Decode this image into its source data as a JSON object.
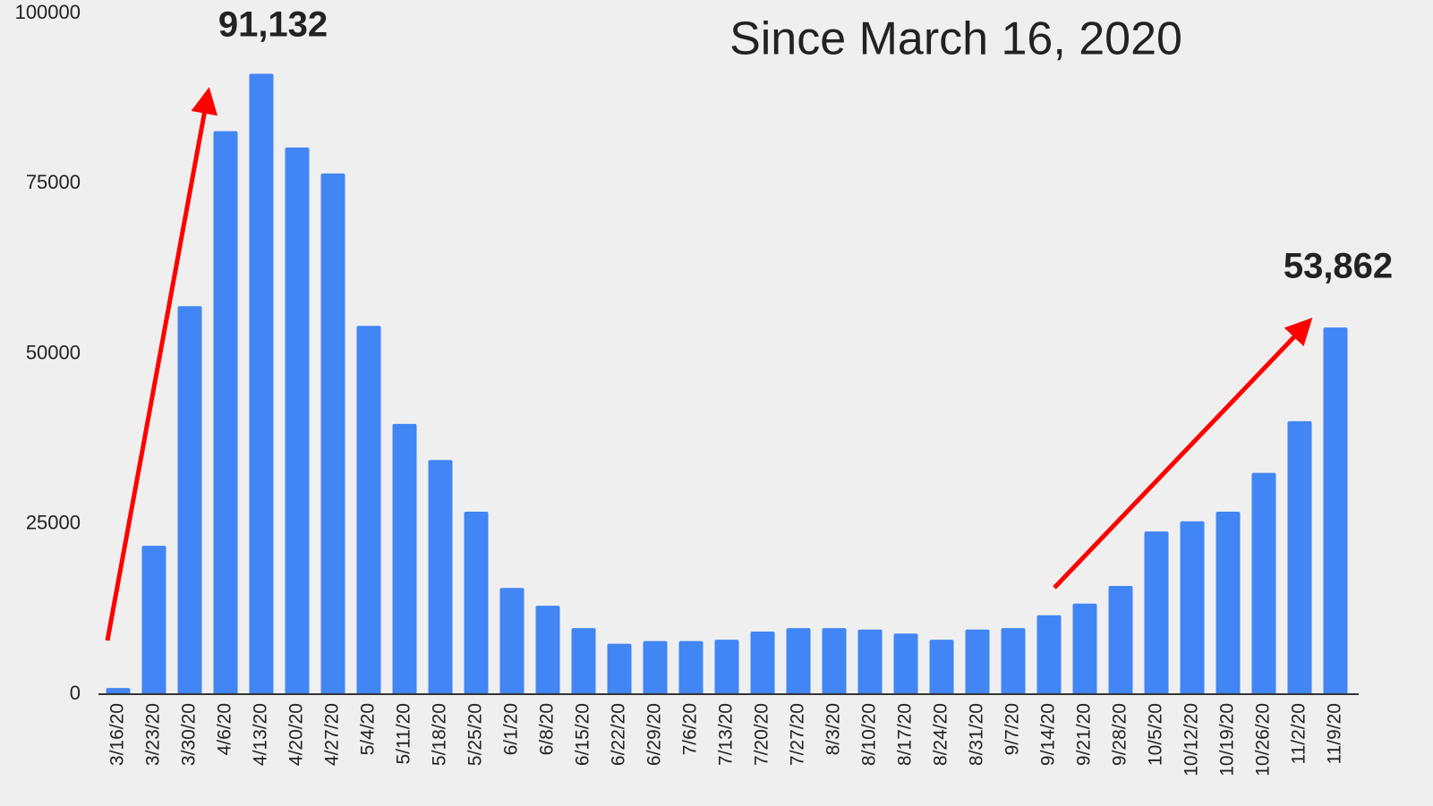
{
  "chart_data": {
    "type": "bar",
    "title": "Since March 16, 2020",
    "annotations": [
      "91,132",
      "53,862"
    ],
    "categories": [
      "3/16/20",
      "3/23/20",
      "3/30/20",
      "4/6/20",
      "4/13/20",
      "4/20/20",
      "4/27/20",
      "5/4/20",
      "5/11/20",
      "5/18/20",
      "5/25/20",
      "6/1/20",
      "6/8/20",
      "6/15/20",
      "6/22/20",
      "6/29/20",
      "7/6/20",
      "7/13/20",
      "7/20/20",
      "7/27/20",
      "8/3/20",
      "8/10/20",
      "8/17/20",
      "8/24/20",
      "8/31/20",
      "9/7/20",
      "9/14/20",
      "9/21/20",
      "9/28/20",
      "10/5/20",
      "10/12/20",
      "10/19/20",
      "10/26/20",
      "11/2/20",
      "11/9/20"
    ],
    "values": [
      900,
      21800,
      57000,
      82700,
      91132,
      80300,
      76500,
      54100,
      39700,
      34400,
      26800,
      15600,
      13000,
      9700,
      7400,
      7800,
      7800,
      8000,
      9200,
      9700,
      9700,
      9500,
      8900,
      8000,
      9500,
      9700,
      11600,
      13300,
      15900,
      23900,
      25400,
      26800,
      32500,
      40100,
      53862
    ],
    "color": "#4285f4",
    "ylim": [
      0,
      100000
    ],
    "yticks": [
      0,
      25000,
      50000,
      75000,
      100000
    ],
    "grid": false
  }
}
